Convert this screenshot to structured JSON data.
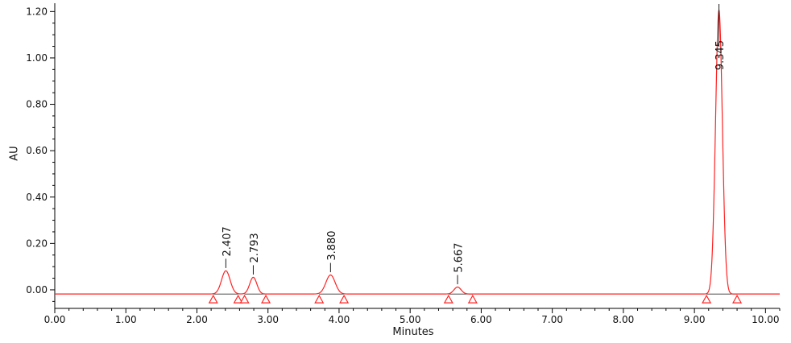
{
  "panel": {
    "background": "#ffffff"
  },
  "chart_data": {
    "type": "line",
    "title": "",
    "xlabel": "Minutes",
    "ylabel": "AU",
    "xlim": [
      0,
      10.2
    ],
    "ylim": [
      -0.08,
      1.222
    ],
    "grid": false,
    "legend": "none",
    "axis_color": "#000000",
    "label_color": "#111111",
    "line_color": "#ff2222",
    "integration_line_color": "#333333",
    "leader_line_color": "#1a1a1a",
    "baseline_au": -0.018,
    "x_major_ticks": [
      0,
      1,
      2,
      3,
      4,
      5,
      6,
      7,
      8,
      9,
      10
    ],
    "x_tick_labels": [
      "0.00",
      "1.00",
      "2.00",
      "3.00",
      "4.00",
      "5.00",
      "6.00",
      "7.00",
      "8.00",
      "9.00",
      "10.00"
    ],
    "x_minor_step": 0.2,
    "y_major_ticks": [
      0.0,
      0.2,
      0.4,
      0.6,
      0.8,
      1.0,
      1.2
    ],
    "y_tick_labels": [
      "0.00",
      "0.20",
      "0.40",
      "0.60",
      "0.80",
      "1.00",
      "1.20"
    ],
    "y_minor_step": 0.05,
    "peaks": [
      {
        "label": "2.407",
        "retention_time": 2.407,
        "height": 0.1,
        "apex_au": 0.082,
        "sigma": 0.06,
        "integration_start": 2.23,
        "integration_end": 2.58
      },
      {
        "label": "2.793",
        "retention_time": 2.793,
        "height": 0.072,
        "apex_au": 0.054,
        "sigma": 0.05,
        "integration_start": 2.67,
        "integration_end": 2.97
      },
      {
        "label": "3.880",
        "retention_time": 3.88,
        "height": 0.082,
        "apex_au": 0.064,
        "sigma": 0.065,
        "integration_start": 3.72,
        "integration_end": 4.07
      },
      {
        "label": "5.667",
        "retention_time": 5.667,
        "height": 0.03,
        "apex_au": 0.012,
        "sigma": 0.05,
        "integration_start": 5.54,
        "integration_end": 5.88
      },
      {
        "label": "9.345",
        "retention_time": 9.345,
        "height": 1.225,
        "apex_au": 1.207,
        "sigma": 0.048,
        "integration_start": 9.17,
        "integration_end": 9.6
      }
    ]
  }
}
